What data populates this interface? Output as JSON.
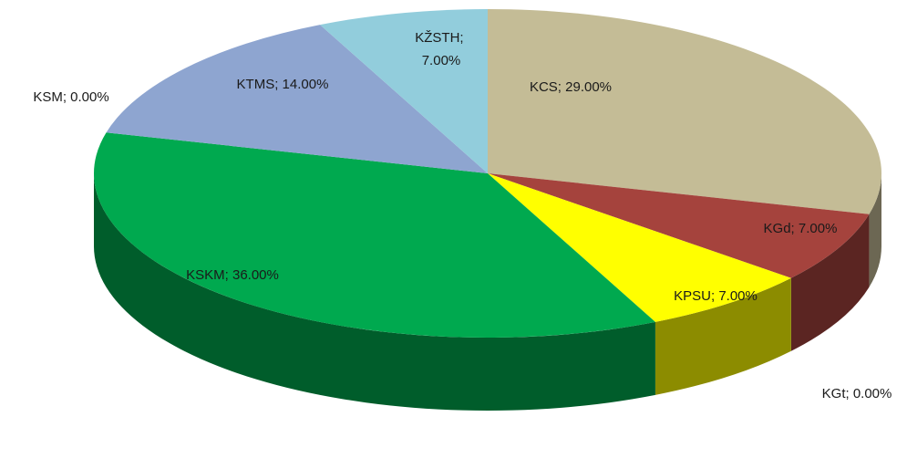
{
  "chart_data": {
    "type": "pie",
    "values": [
      29,
      7,
      0,
      7,
      36,
      0,
      14,
      7
    ],
    "value_labels": [
      "KCS; 29.00%",
      "KGd; 7.00%",
      "KGt; 0.00%",
      "KPSU; 7.00%",
      "KSKM; 36.00%",
      "KSM; 0.00%",
      "KTMS; 14.00%",
      "KŽSTH; 7.00%"
    ],
    "colors": [
      "#c4bc96",
      "#a5433d",
      "#7f7f00",
      "#ffff00",
      "#00a94f",
      "#4f81bd",
      "#8ea5d0",
      "#92cddc"
    ]
  }
}
